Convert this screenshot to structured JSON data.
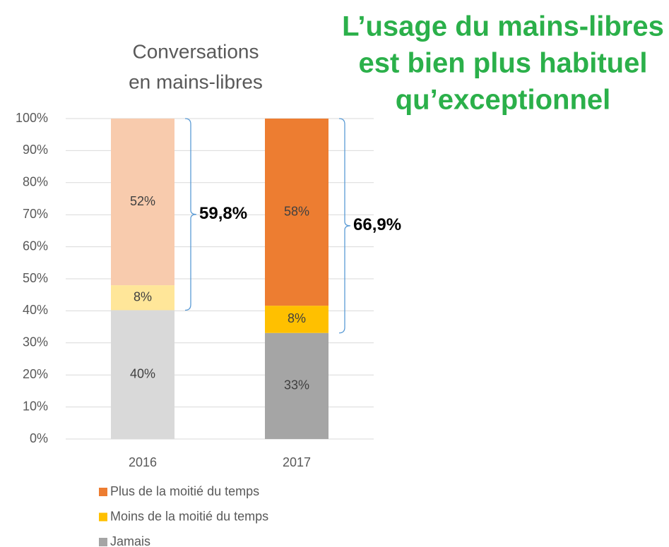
{
  "chart_data": {
    "type": "stacked_bar",
    "title": [
      "Conversations",
      "en mains-libres"
    ],
    "headline": [
      "L’usage du mains-libres",
      "est bien plus habituel",
      "qu’exceptionnel"
    ],
    "categories": [
      "2016",
      "2017"
    ],
    "series": [
      {
        "name": "Plus de la moitié du temps",
        "color": "#ed7d31",
        "colors": [
          "#f8cbad",
          "#ed7d31"
        ],
        "values": [
          52.0,
          58.4
        ],
        "value_labels": [
          "52%",
          "58%"
        ]
      },
      {
        "name": "Moins de la moitié du temps",
        "color": "#ffc000",
        "colors": [
          "#ffe699",
          "#ffc000"
        ],
        "values": [
          7.8,
          8.5
        ],
        "value_labels": [
          "8%",
          "8%"
        ]
      },
      {
        "name": "Jamais",
        "color": "#a5a5a5",
        "colors": [
          "#d9d9d9",
          "#a5a5a5"
        ],
        "values": [
          40.2,
          33.1
        ],
        "value_labels": [
          "40%",
          "33%"
        ]
      }
    ],
    "annotations": [
      "59,8%",
      "66,9%"
    ],
    "ylim": [
      0,
      100
    ],
    "yticks": [
      {
        "value": 0,
        "label": "0%"
      },
      {
        "value": 10,
        "label": "10%"
      },
      {
        "value": 20,
        "label": "20%"
      },
      {
        "value": 30,
        "label": "30%"
      },
      {
        "value": 40,
        "label": "40%"
      },
      {
        "value": 50,
        "label": "50%"
      },
      {
        "value": 60,
        "label": "60%"
      },
      {
        "value": 70,
        "label": "70%"
      },
      {
        "value": 80,
        "label": "80%"
      },
      {
        "value": 90,
        "label": "90%"
      },
      {
        "value": 100,
        "label": "100%"
      }
    ],
    "grid": true
  }
}
